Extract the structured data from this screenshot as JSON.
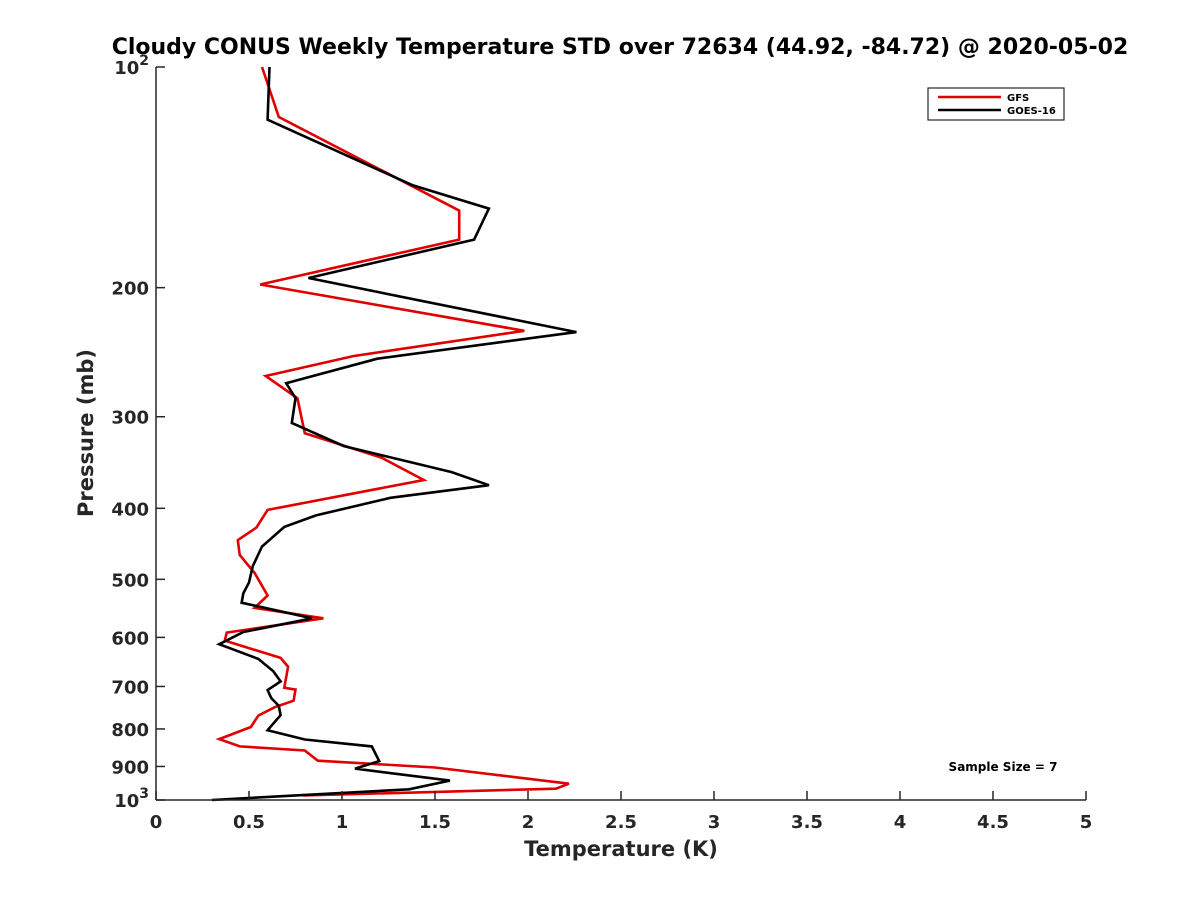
{
  "chart_data": {
    "type": "line",
    "title": "Cloudy CONUS Weekly Temperature STD over 72634 (44.92, -84.72) @ 2020-05-02",
    "xlabel": "Temperature (K)",
    "ylabel": "Pressure (mb)",
    "xlim": [
      0,
      5
    ],
    "ylim": [
      100,
      1000
    ],
    "y_scale": "log",
    "y_reversed": true,
    "grid": false,
    "legend_position": "top-right",
    "x_ticks": [
      "0",
      "0.5",
      "1",
      "1.5",
      "2",
      "2.5",
      "3",
      "3.5",
      "4",
      "4.5",
      "5"
    ],
    "y_ticks": [
      {
        "p": 100,
        "base": "10",
        "exp": "2"
      },
      {
        "p": 200,
        "label": "200"
      },
      {
        "p": 300,
        "label": "300"
      },
      {
        "p": 400,
        "label": "400"
      },
      {
        "p": 500,
        "label": "500"
      },
      {
        "p": 600,
        "label": "600"
      },
      {
        "p": 700,
        "label": "700"
      },
      {
        "p": 800,
        "label": "800"
      },
      {
        "p": 900,
        "label": "900"
      },
      {
        "p": 1000,
        "base": "10",
        "exp": "3"
      }
    ],
    "annotation": "Sample Size = 7",
    "series": [
      {
        "name": "GFS",
        "color": "#e00000",
        "points": [
          [
            0.57,
            100
          ],
          [
            0.66,
            117
          ],
          [
            1.63,
            157
          ],
          [
            1.63,
            172
          ],
          [
            0.56,
            198
          ],
          [
            1.98,
            229
          ],
          [
            1.06,
            248
          ],
          [
            0.59,
            264
          ],
          [
            0.76,
            283
          ],
          [
            0.8,
            316
          ],
          [
            1.21,
            341
          ],
          [
            1.44,
            366
          ],
          [
            0.6,
            402
          ],
          [
            0.54,
            425
          ],
          [
            0.44,
            442
          ],
          [
            0.45,
            463
          ],
          [
            0.53,
            490
          ],
          [
            0.6,
            526
          ],
          [
            0.53,
            547
          ],
          [
            0.9,
            565
          ],
          [
            0.38,
            591
          ],
          [
            0.37,
            606
          ],
          [
            0.67,
            640
          ],
          [
            0.71,
            658
          ],
          [
            0.7,
            680
          ],
          [
            0.69,
            703
          ],
          [
            0.75,
            707
          ],
          [
            0.74,
            732
          ],
          [
            0.64,
            747
          ],
          [
            0.55,
            767
          ],
          [
            0.51,
            795
          ],
          [
            0.34,
            826
          ],
          [
            0.45,
            845
          ],
          [
            0.8,
            856
          ],
          [
            0.87,
            884
          ],
          [
            1.5,
            903
          ],
          [
            2.22,
            950
          ],
          [
            2.15,
            965
          ],
          [
            0.79,
            986
          ]
        ]
      },
      {
        "name": "GOES-16",
        "color": "#000000",
        "points": [
          [
            0.61,
            100
          ],
          [
            0.6,
            118
          ],
          [
            1.38,
            145
          ],
          [
            1.79,
            156
          ],
          [
            1.71,
            172
          ],
          [
            0.82,
            194
          ],
          [
            2.26,
            230
          ],
          [
            1.19,
            250
          ],
          [
            0.7,
            270
          ],
          [
            0.75,
            283
          ],
          [
            0.73,
            306
          ],
          [
            1.01,
            329
          ],
          [
            1.59,
            357
          ],
          [
            1.79,
            372
          ],
          [
            1.26,
            387
          ],
          [
            0.86,
            409
          ],
          [
            0.69,
            424
          ],
          [
            0.57,
            451
          ],
          [
            0.52,
            480
          ],
          [
            0.5,
            505
          ],
          [
            0.47,
            522
          ],
          [
            0.46,
            538
          ],
          [
            0.84,
            565
          ],
          [
            0.47,
            590
          ],
          [
            0.34,
            613
          ],
          [
            0.55,
            642
          ],
          [
            0.63,
            667
          ],
          [
            0.67,
            689
          ],
          [
            0.6,
            708
          ],
          [
            0.62,
            726
          ],
          [
            0.66,
            744
          ],
          [
            0.67,
            766
          ],
          [
            0.6,
            803
          ],
          [
            0.8,
            827
          ],
          [
            1.16,
            845
          ],
          [
            1.2,
            885
          ],
          [
            1.07,
            906
          ],
          [
            1.58,
            941
          ],
          [
            1.36,
            967
          ],
          [
            0.3,
            1000
          ]
        ]
      }
    ]
  }
}
